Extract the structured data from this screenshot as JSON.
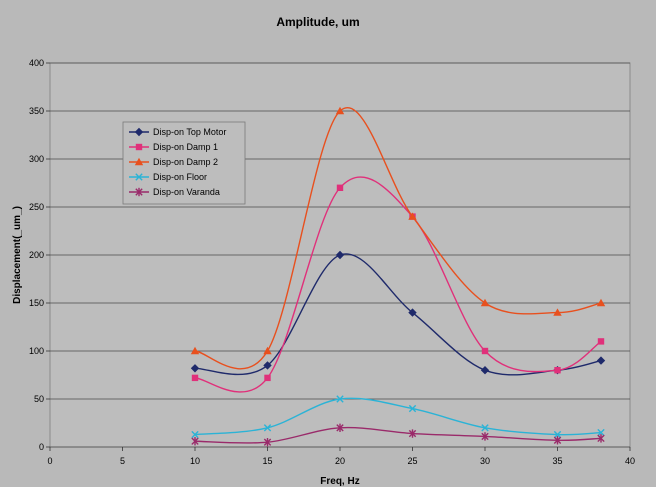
{
  "chart_data": {
    "type": "line",
    "title": "Amplitude, um",
    "xlabel": "Freq, Hz",
    "ylabel": "Displacement(_um_)",
    "xlim": [
      0,
      40
    ],
    "ylim": [
      0,
      400
    ],
    "xticks": [
      "0",
      "5",
      "10",
      "15",
      "20",
      "25",
      "30",
      "35",
      "40"
    ],
    "yticks": [
      "0",
      "50",
      "100",
      "150",
      "200",
      "250",
      "300",
      "350",
      "400"
    ],
    "grid": "horizontal",
    "smooth": true,
    "legend_position": "upper-left",
    "x": [
      10,
      15,
      20,
      25,
      30,
      35,
      38
    ],
    "series": [
      {
        "name": "Disp-on Top Motor",
        "color": "#1f2a6b",
        "marker": "diamond",
        "values": [
          82,
          85,
          200,
          140,
          80,
          80,
          90
        ]
      },
      {
        "name": "Disp-on Damp 1",
        "color": "#e0307a",
        "marker": "square",
        "values": [
          72,
          72,
          270,
          240,
          100,
          80,
          110
        ]
      },
      {
        "name": "Disp-on Damp 2",
        "color": "#e8501e",
        "marker": "triangle",
        "values": [
          100,
          100,
          350,
          240,
          150,
          140,
          150
        ]
      },
      {
        "name": "Disp-on Floor",
        "color": "#2bb3d6",
        "marker": "x",
        "values": [
          13,
          20,
          50,
          40,
          20,
          13,
          15
        ]
      },
      {
        "name": "Disp-on Varanda",
        "color": "#9a2a6a",
        "marker": "star",
        "values": [
          6,
          5,
          20,
          14,
          11,
          7,
          9
        ]
      }
    ]
  }
}
